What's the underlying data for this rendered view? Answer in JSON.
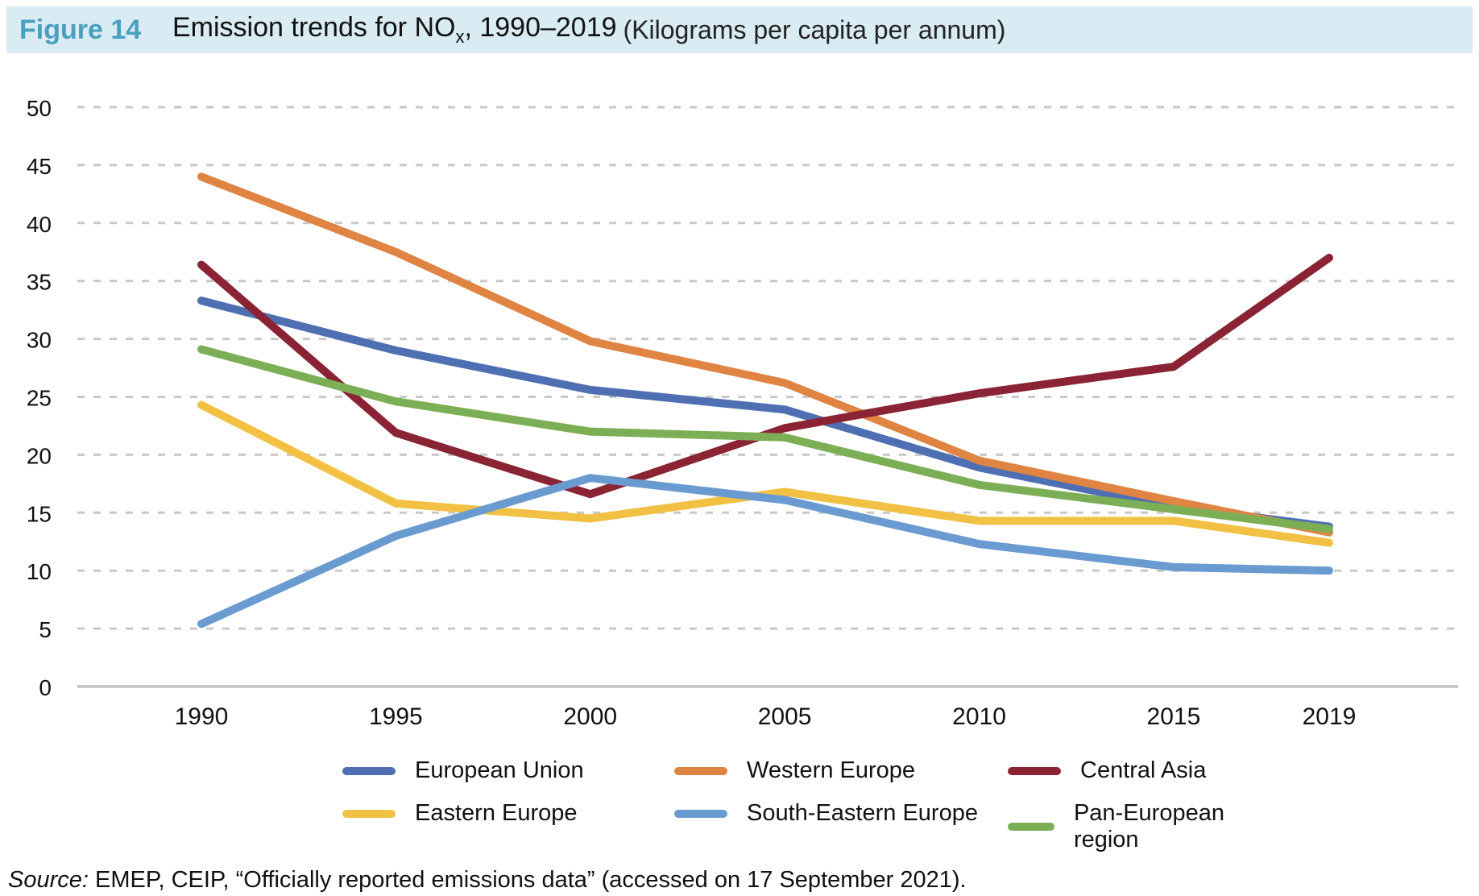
{
  "header": {
    "figure_number": "Figure 14",
    "title_prefix": "Emission trends for NO",
    "title_subscript": "x",
    "title_suffix": ", 1990–2019",
    "unit": "(Kilograms per capita per annum)"
  },
  "source": {
    "label": "Source:",
    "text": " EMEP, CEIP, “Officially reported emissions data” (accessed on 17 September 2021)."
  },
  "chart_data": {
    "type": "line",
    "title": "Emission trends for NOx, 1990–2019 (Kilograms per capita per annum)",
    "xlabel": "",
    "ylabel": "Kilograms per capita per annum",
    "x": [
      "1990",
      "1995",
      "2000",
      "2005",
      "2010",
      "2015",
      "2019"
    ],
    "ylim": [
      0,
      50
    ],
    "yticks": [
      0,
      5,
      10,
      15,
      20,
      25,
      30,
      35,
      40,
      45,
      50
    ],
    "grid": true,
    "legend_position": "bottom",
    "series": [
      {
        "name": "European Union",
        "color": "#4f6fb3",
        "values": [
          33.3,
          29.0,
          25.6,
          23.9,
          18.9,
          15.5,
          13.8
        ]
      },
      {
        "name": "Western Europe",
        "color": "#e08444",
        "values": [
          44.0,
          37.5,
          29.8,
          26.2,
          19.5,
          16.0,
          13.3
        ]
      },
      {
        "name": "Central Asia",
        "color": "#8a2333",
        "values": [
          36.4,
          21.9,
          16.6,
          22.3,
          25.3,
          27.6,
          37.0
        ]
      },
      {
        "name": "Eastern Europe",
        "color": "#f2c144",
        "values": [
          24.3,
          15.8,
          14.5,
          16.8,
          14.3,
          14.3,
          12.4
        ]
      },
      {
        "name": "South-Eastern Europe",
        "color": "#6a9bd0",
        "values": [
          5.4,
          13.0,
          18.0,
          16.1,
          12.3,
          10.3,
          10.0
        ]
      },
      {
        "name": "Pan-European region",
        "color": "#7caf55",
        "values": [
          29.1,
          24.6,
          22.0,
          21.5,
          17.4,
          15.3,
          13.6
        ]
      }
    ]
  }
}
